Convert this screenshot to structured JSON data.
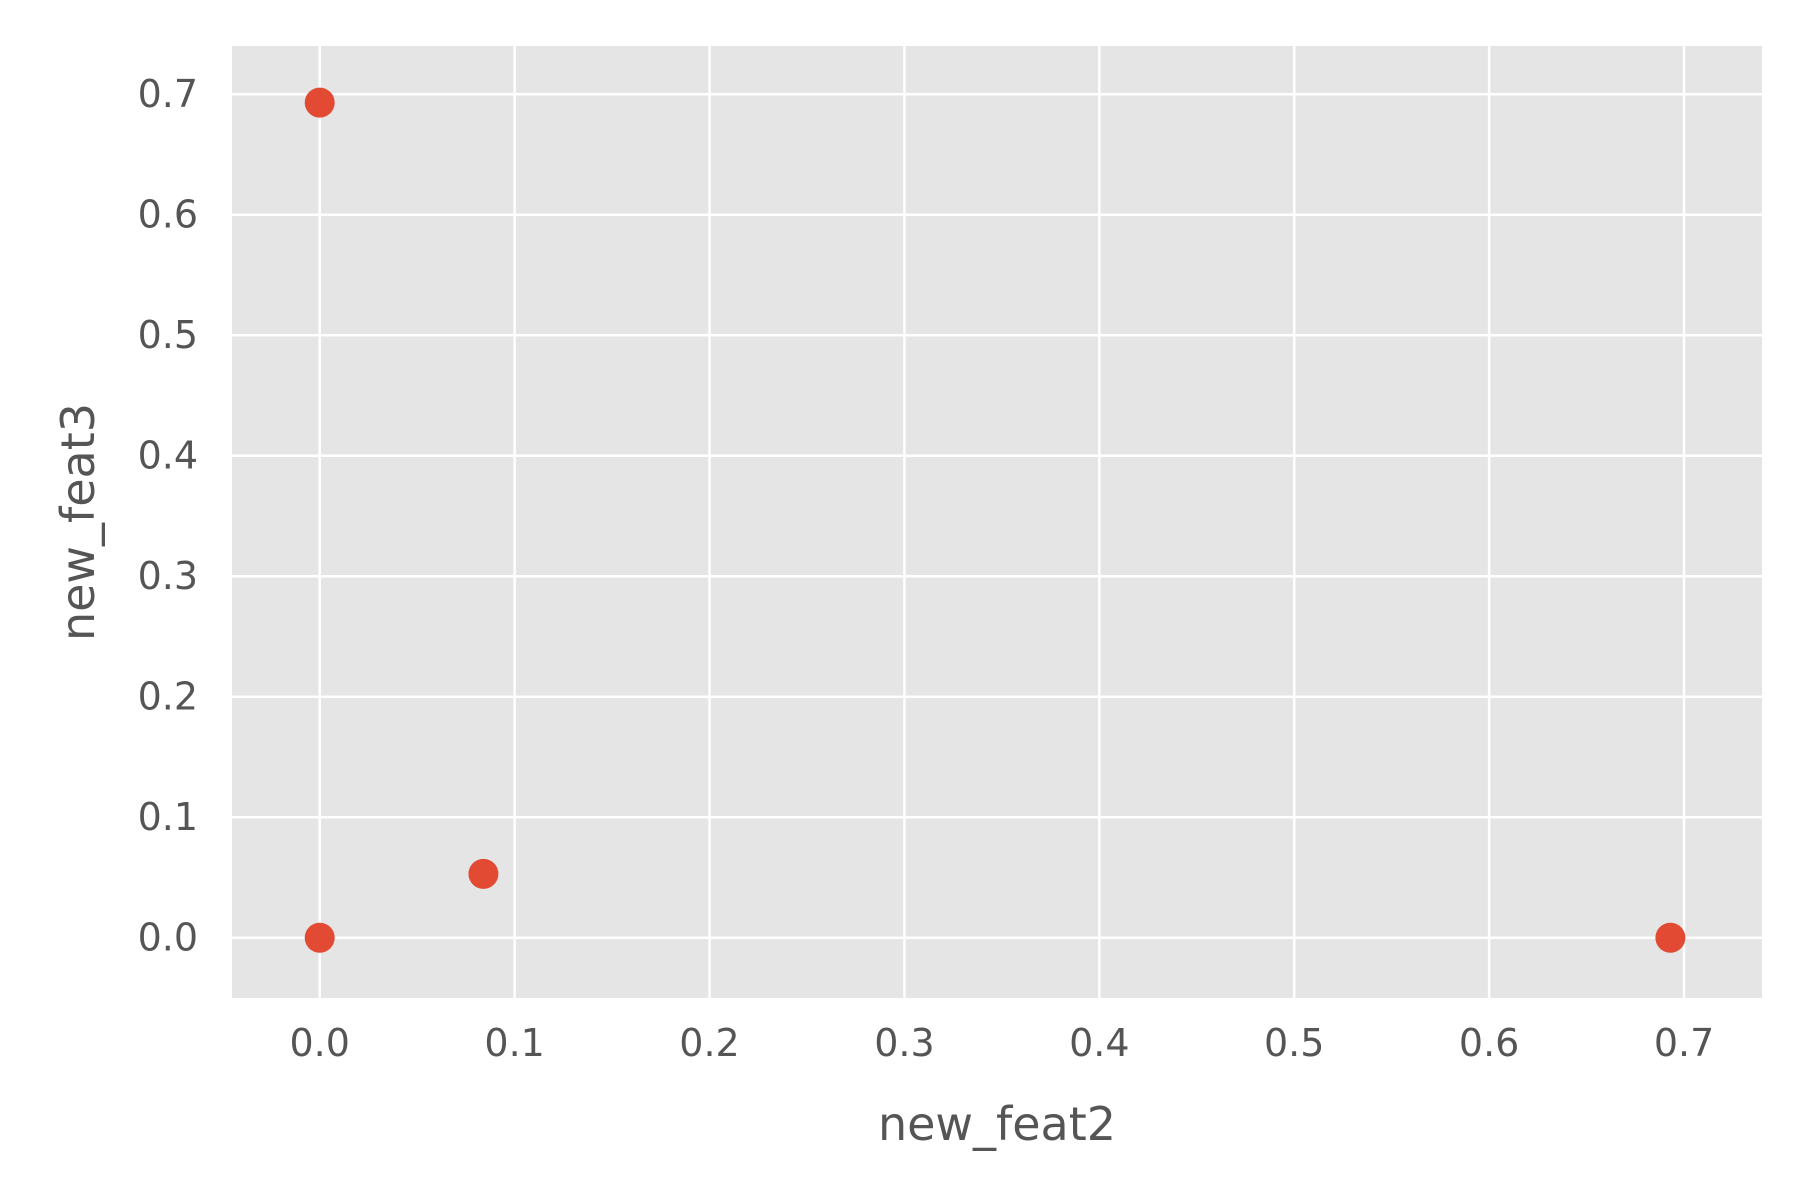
{
  "chart_data": {
    "type": "scatter",
    "title": "",
    "xlabel": "new_feat2",
    "ylabel": "new_feat3",
    "xlim": [
      -0.045,
      0.74
    ],
    "ylim": [
      -0.05,
      0.74
    ],
    "xticks": [
      0.0,
      0.1,
      0.2,
      0.3,
      0.4,
      0.5,
      0.6,
      0.7
    ],
    "yticks": [
      0.0,
      0.1,
      0.2,
      0.3,
      0.4,
      0.5,
      0.6,
      0.7
    ],
    "xtick_labels": [
      "0.0",
      "0.1",
      "0.2",
      "0.3",
      "0.4",
      "0.5",
      "0.6",
      "0.7"
    ],
    "ytick_labels": [
      "0.0",
      "0.1",
      "0.2",
      "0.3",
      "0.4",
      "0.5",
      "0.6",
      "0.7"
    ],
    "grid": true,
    "colors": {
      "background": "#E5E5E5",
      "grid": "#FFFFFF",
      "point": "#E24A33",
      "text": "#555555"
    },
    "series": [
      {
        "points": [
          {
            "x": 0.0,
            "y": 0.693
          },
          {
            "x": 0.0,
            "y": 0.0
          },
          {
            "x": 0.084,
            "y": 0.053
          },
          {
            "x": 0.693,
            "y": 0.0
          }
        ]
      }
    ]
  }
}
